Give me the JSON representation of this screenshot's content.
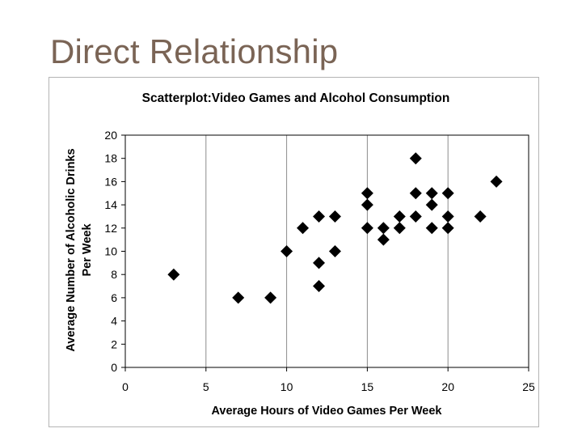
{
  "slide": {
    "title": "Direct Relationship"
  },
  "chart_data": {
    "type": "scatter",
    "title": "Scatterplot:Video Games and Alcohol Consumption",
    "xlabel": "Average Hours of Video Games Per Week",
    "ylabel_lines": [
      "Average Number of Alcoholic Drinks",
      "Per Week"
    ],
    "xlim": [
      0,
      25
    ],
    "ylim": [
      0,
      20
    ],
    "xticks": [
      0,
      5,
      10,
      15,
      20,
      25
    ],
    "yticks": [
      0,
      2,
      4,
      6,
      8,
      10,
      12,
      14,
      16,
      18,
      20
    ],
    "grid": "vertical",
    "marker": "diamond",
    "marker_color": "#000000",
    "points": [
      {
        "x": 3,
        "y": 8
      },
      {
        "x": 7,
        "y": 6
      },
      {
        "x": 9,
        "y": 6
      },
      {
        "x": 10,
        "y": 10
      },
      {
        "x": 11,
        "y": 12
      },
      {
        "x": 12,
        "y": 13
      },
      {
        "x": 12,
        "y": 9
      },
      {
        "x": 12,
        "y": 7
      },
      {
        "x": 13,
        "y": 13
      },
      {
        "x": 13,
        "y": 10
      },
      {
        "x": 15,
        "y": 15
      },
      {
        "x": 15,
        "y": 14
      },
      {
        "x": 15,
        "y": 12
      },
      {
        "x": 16,
        "y": 12
      },
      {
        "x": 16,
        "y": 11
      },
      {
        "x": 17,
        "y": 13
      },
      {
        "x": 17,
        "y": 12
      },
      {
        "x": 18,
        "y": 18
      },
      {
        "x": 18,
        "y": 15
      },
      {
        "x": 18,
        "y": 13
      },
      {
        "x": 19,
        "y": 15
      },
      {
        "x": 19,
        "y": 14
      },
      {
        "x": 19,
        "y": 12
      },
      {
        "x": 20,
        "y": 15
      },
      {
        "x": 20,
        "y": 13
      },
      {
        "x": 20,
        "y": 12
      },
      {
        "x": 22,
        "y": 13
      },
      {
        "x": 23,
        "y": 16
      }
    ]
  }
}
